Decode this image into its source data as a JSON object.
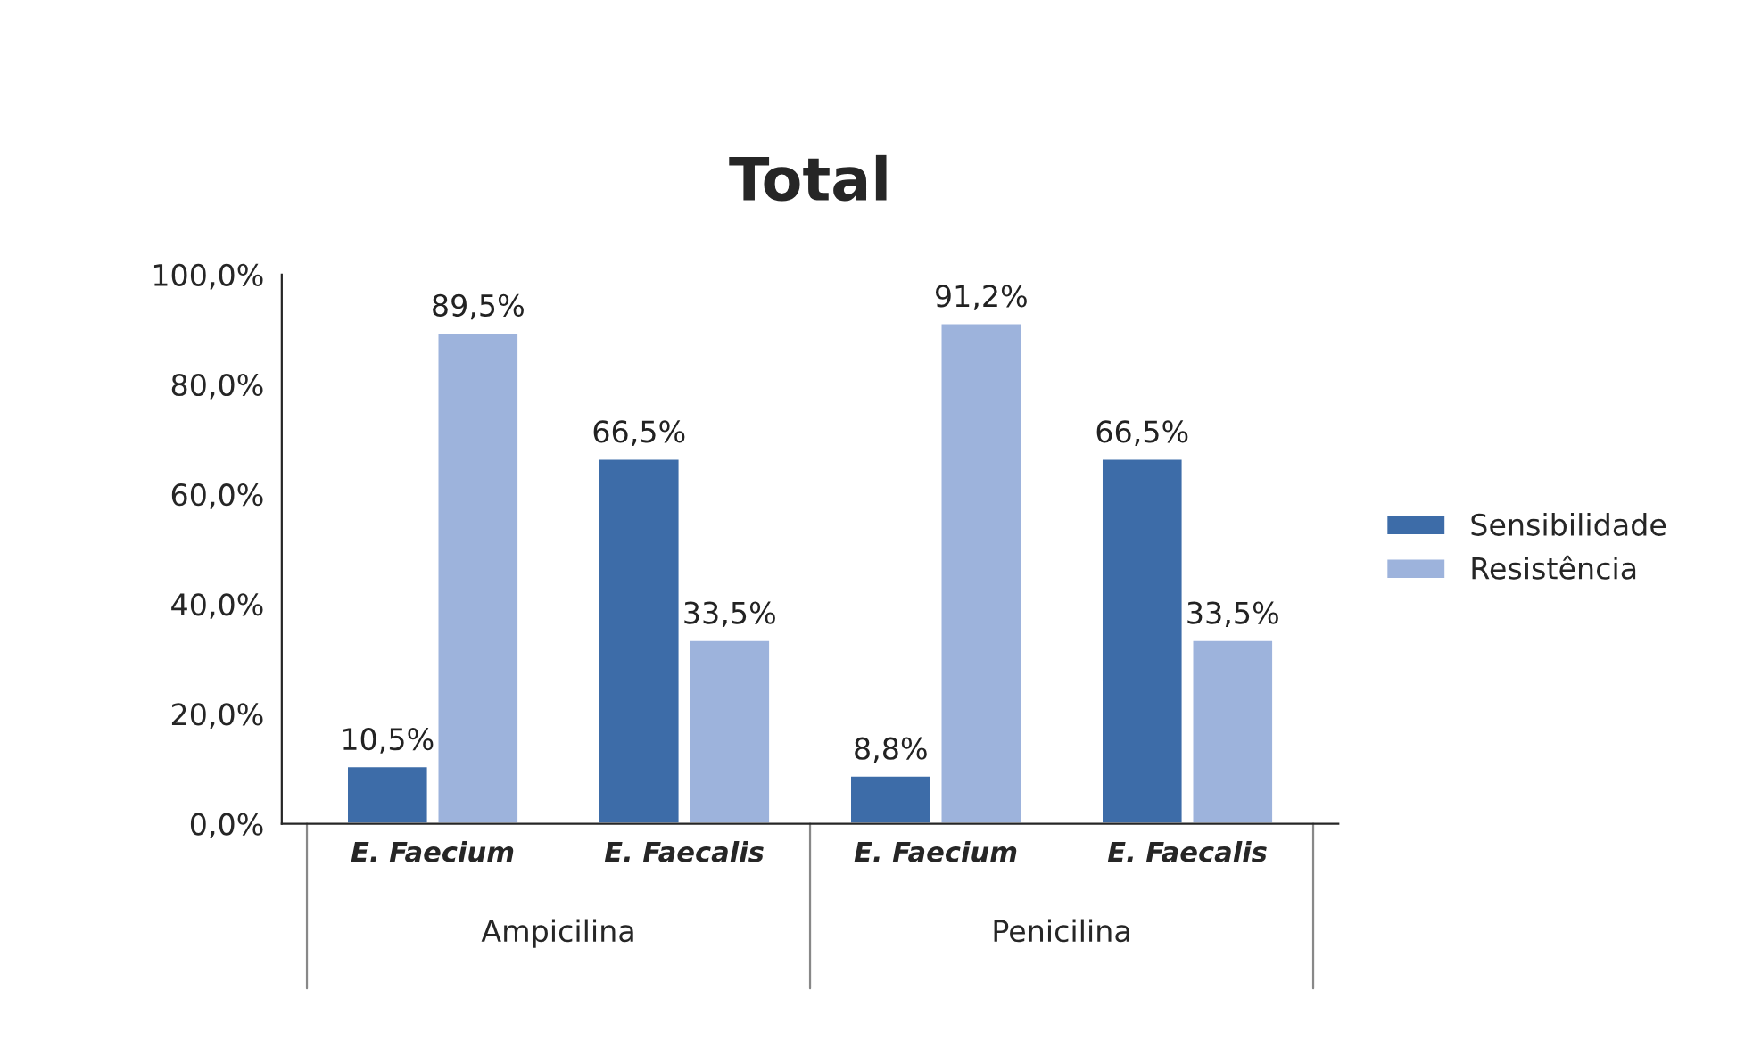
{
  "chart_data": {
    "type": "bar",
    "title": "Total",
    "categories": [
      "E. Faecium",
      "E. Faecalis",
      "E. Faecium",
      "E. Faecalis"
    ],
    "series": [
      {
        "name": "Sensibilidade",
        "color": "#3d6ca8",
        "values": [
          10.5,
          66.5,
          8.8,
          66.5
        ],
        "value_labels": [
          "10,5%",
          "66,5%",
          "8,8%",
          "66,5%"
        ]
      },
      {
        "name": "Resistência",
        "color": "#9db3dc",
        "values": [
          89.5,
          33.5,
          91.2,
          33.5
        ],
        "value_labels": [
          "89,5%",
          "33,5%",
          "91,2%",
          "33,5%"
        ]
      }
    ],
    "ylim": [
      0,
      100
    ],
    "yticks": [
      {
        "value": 0,
        "label": "0,0%"
      },
      {
        "value": 20,
        "label": "20,0%"
      },
      {
        "value": 40,
        "label": "40,0%"
      },
      {
        "value": 60,
        "label": "60,0%"
      },
      {
        "value": 80,
        "label": "80,0%"
      },
      {
        "value": 100,
        "label": "100,0%"
      }
    ],
    "annotations": [
      "Ampicilina",
      "Penicilina"
    ],
    "legend": "right",
    "grid": false
  }
}
